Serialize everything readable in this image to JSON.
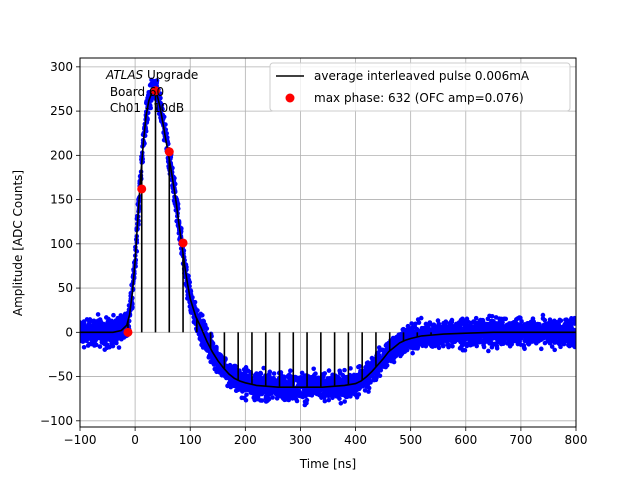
{
  "chart_data": {
    "type": "scatter",
    "title": "",
    "xlabel": "Time [ns]",
    "ylabel": "Amplitude [ADC Counts]",
    "xlim": [
      -100,
      800
    ],
    "ylim": [
      -107,
      310
    ],
    "xticks": [
      -100,
      0,
      100,
      200,
      300,
      400,
      500,
      600,
      700,
      800
    ],
    "yticks": [
      -100,
      -50,
      0,
      50,
      100,
      150,
      200,
      250,
      300
    ],
    "grid": true,
    "legend_position": "top-right",
    "annotation": {
      "lines": [
        "ATLAS Upgrade",
        " Board 60",
        " Ch01 - 10dB"
      ],
      "italic_word": "ATLAS"
    },
    "series": [
      {
        "name": "average interleaved pulse 0.006mA",
        "kind": "line",
        "color": "#000000",
        "x": [
          -100,
          -40,
          -25,
          -15,
          -10,
          -5,
          0,
          5,
          10,
          15,
          20,
          25,
          30,
          35,
          40,
          45,
          50,
          55,
          60,
          65,
          70,
          75,
          80,
          85,
          90,
          95,
          100,
          110,
          120,
          130,
          140,
          150,
          160,
          170,
          180,
          190,
          200,
          220,
          240,
          260,
          280,
          300,
          320,
          340,
          360,
          380,
          400,
          410,
          420,
          430,
          440,
          450,
          460,
          470,
          480,
          490,
          500,
          520,
          540,
          560,
          600,
          650,
          700,
          750,
          800
        ],
        "y": [
          0,
          0,
          2,
          8,
          20,
          45,
          80,
          130,
          175,
          215,
          245,
          262,
          270,
          272,
          268,
          255,
          238,
          220,
          203,
          185,
          165,
          145,
          120,
          98,
          75,
          55,
          38,
          18,
          5,
          -10,
          -22,
          -32,
          -40,
          -47,
          -52,
          -55,
          -57,
          -60,
          -61,
          -62,
          -62,
          -62,
          -62,
          -62,
          -61,
          -60,
          -58,
          -55,
          -50,
          -44,
          -37,
          -30,
          -22,
          -17,
          -12,
          -9,
          -7,
          -4,
          -3,
          -2,
          -1,
          0,
          0,
          0,
          0
        ]
      },
      {
        "name": "max phase: 632 (OFC amp=0.076)",
        "kind": "scatter",
        "color": "#ff0000",
        "x": [
          -13,
          12,
          37,
          62,
          87
        ],
        "y": [
          0,
          162,
          273,
          204,
          101
        ]
      },
      {
        "name": "",
        "kind": "scatter-band",
        "color": "#0000ff",
        "x": [
          -100,
          -40,
          -25,
          -15,
          -10,
          -5,
          0,
          5,
          10,
          15,
          20,
          25,
          30,
          35,
          40,
          45,
          50,
          55,
          60,
          65,
          70,
          75,
          80,
          85,
          90,
          95,
          100,
          110,
          120,
          130,
          140,
          150,
          160,
          170,
          180,
          190,
          200,
          220,
          240,
          260,
          280,
          300,
          320,
          340,
          360,
          380,
          400,
          410,
          420,
          430,
          440,
          450,
          460,
          470,
          480,
          490,
          500,
          520,
          540,
          560,
          600,
          650,
          700,
          750,
          800
        ],
        "y": [
          0,
          0,
          2,
          8,
          20,
          45,
          80,
          130,
          175,
          215,
          245,
          262,
          270,
          272,
          268,
          255,
          238,
          220,
          203,
          185,
          165,
          145,
          120,
          98,
          75,
          55,
          38,
          18,
          5,
          -10,
          -22,
          -32,
          -40,
          -47,
          -52,
          -55,
          -57,
          -60,
          -61,
          -62,
          -62,
          -62,
          -62,
          -62,
          -61,
          -60,
          -58,
          -55,
          -50,
          -44,
          -37,
          -30,
          -22,
          -17,
          -12,
          -9,
          -7,
          -4,
          -3,
          -2,
          -1,
          0,
          0,
          0,
          0
        ],
        "spread": 22
      }
    ],
    "vertical_lines": {
      "color": "#000000",
      "x": [
        -13,
        12,
        37,
        62,
        87,
        112,
        137,
        162,
        187,
        212,
        237,
        262,
        287,
        312,
        337,
        362,
        387,
        412,
        437,
        462,
        487,
        512,
        537
      ]
    }
  }
}
